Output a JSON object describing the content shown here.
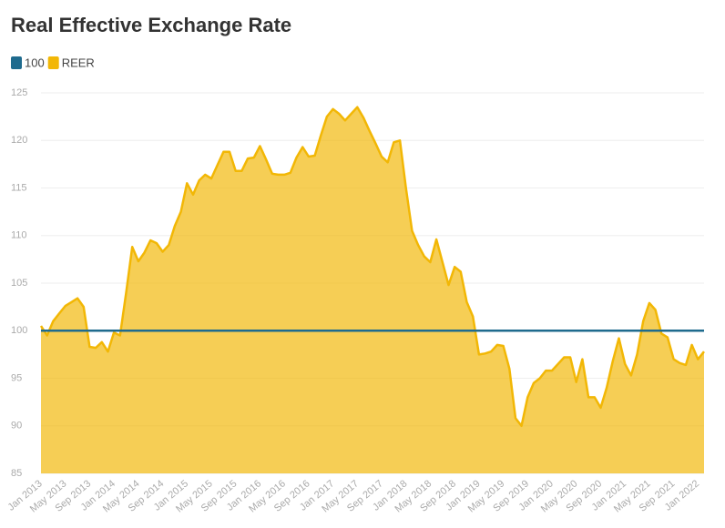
{
  "chart_data": {
    "type": "area",
    "title": "Real Effective Exchange Rate",
    "categories": [
      "Jan 2013",
      null,
      null,
      null,
      "May 2013",
      null,
      null,
      null,
      "Sep 2013",
      null,
      null,
      null,
      "Jan 2014",
      null,
      null,
      null,
      "May 2014",
      null,
      null,
      null,
      "Sep 2014",
      null,
      null,
      null,
      "Jan 2015",
      null,
      null,
      null,
      "May 2015",
      null,
      null,
      null,
      "Sep 2015",
      null,
      null,
      null,
      "Jan 2016",
      null,
      null,
      null,
      "May 2016",
      null,
      null,
      null,
      "Sep 2016",
      null,
      null,
      null,
      "Jan 2017",
      null,
      null,
      null,
      "May 2017",
      null,
      null,
      null,
      "Sep 2017",
      null,
      null,
      null,
      "Jan 2018",
      null,
      null,
      null,
      "May 2018",
      null,
      null,
      null,
      "Sep 2018",
      null,
      null,
      null,
      "Jan 2019",
      null,
      null,
      null,
      "May 2019",
      null,
      null,
      null,
      "Sep 2019",
      null,
      null,
      null,
      "Jan 2020",
      null,
      null,
      null,
      "May 2020",
      null,
      null,
      null,
      "Sep 2020",
      null,
      null,
      null,
      "Jan 2021",
      null,
      null,
      null,
      "May 2021",
      null,
      null,
      null,
      "Sep 2021",
      null,
      null,
      null,
      "Jan 2022",
      null
    ],
    "series": [
      {
        "name": "100",
        "type": "line",
        "color": "#1f6b8e",
        "values": [
          100,
          100,
          100,
          100,
          100,
          100,
          100,
          100,
          100,
          100,
          100,
          100,
          100,
          100,
          100,
          100,
          100,
          100,
          100,
          100,
          100,
          100,
          100,
          100,
          100,
          100,
          100,
          100,
          100,
          100,
          100,
          100,
          100,
          100,
          100,
          100,
          100,
          100,
          100,
          100,
          100,
          100,
          100,
          100,
          100,
          100,
          100,
          100,
          100,
          100,
          100,
          100,
          100,
          100,
          100,
          100,
          100,
          100,
          100,
          100,
          100,
          100,
          100,
          100,
          100,
          100,
          100,
          100,
          100,
          100,
          100,
          100,
          100,
          100,
          100,
          100,
          100,
          100,
          100,
          100,
          100,
          100,
          100,
          100,
          100,
          100,
          100,
          100,
          100,
          100,
          100,
          100,
          100,
          100,
          100,
          100,
          100,
          100,
          100,
          100,
          100,
          100,
          100,
          100,
          100,
          100,
          100,
          100,
          100,
          100
        ]
      },
      {
        "name": "REER",
        "type": "area",
        "color": "#f2b705",
        "values": [
          100.5,
          99.5,
          101,
          101.8,
          102.6,
          103,
          103.4,
          102.5,
          98.3,
          98.2,
          98.8,
          97.8,
          99.8,
          99.5,
          104,
          108.8,
          107.3,
          108.2,
          109.5,
          109.2,
          108.3,
          109,
          111,
          112.5,
          115.5,
          114.3,
          115.8,
          116.4,
          116,
          117.4,
          118.8,
          118.8,
          116.8,
          116.8,
          118.1,
          118.2,
          119.4,
          118,
          116.5,
          116.4,
          116.4,
          116.6,
          118.2,
          119.3,
          118.3,
          118.4,
          120.5,
          122.5,
          123.3,
          122.8,
          122.1,
          122.8,
          123.5,
          122.4,
          121,
          119.7,
          118.3,
          117.7,
          119.8,
          120,
          115,
          110.5,
          109,
          107.8,
          107.2,
          109.6,
          107.2,
          104.8,
          106.7,
          106.2,
          103,
          101.5,
          97.5,
          97.6,
          97.8,
          98.5,
          98.4,
          96,
          90.8,
          90,
          93,
          94.5,
          95,
          95.8,
          95.8,
          96.5,
          97.2,
          97.2,
          94.6,
          97,
          93,
          93,
          91.9,
          94,
          96.8,
          99.2,
          96.5,
          95.3,
          97.5,
          101,
          102.9,
          102.2,
          99.7,
          99.3,
          97,
          96.6,
          96.4,
          98.5,
          97,
          97.8
        ]
      }
    ],
    "ylim": [
      85,
      125
    ],
    "yticks": [
      85,
      90,
      95,
      100,
      105,
      110,
      115,
      120,
      125
    ],
    "grid": true
  }
}
